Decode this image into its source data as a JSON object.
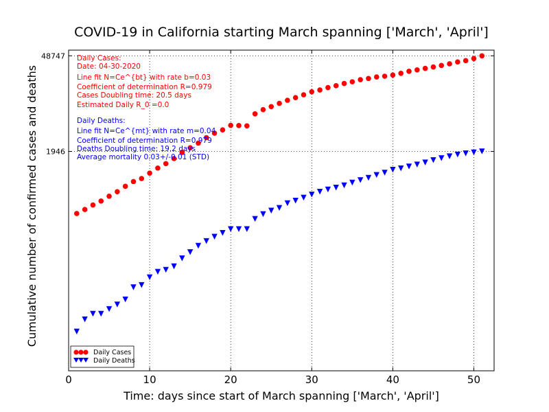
{
  "chart_data": {
    "type": "scatter",
    "title": "COVID-19 in California starting March spanning ['March', 'April']",
    "xlabel": "Time: days since start of March spanning ['March', 'April']",
    "ylabel": "Cumulative number of confirmed cases and deaths",
    "xlim": [
      0,
      52.5
    ],
    "xticks": [
      0,
      10,
      20,
      30,
      40,
      50
    ],
    "ylim": [
      1.2,
      59000
    ],
    "yscale": "log",
    "yticks": [
      1946,
      48747
    ],
    "grid": true,
    "legend": {
      "placement": "lower-left"
    },
    "series": [
      {
        "name": "Daily Cases",
        "color": "#ff0000",
        "marker": "circle",
        "x": [
          1,
          2,
          3,
          4,
          5,
          6,
          7,
          8,
          9,
          10,
          11,
          12,
          13,
          14,
          15,
          16,
          17,
          18,
          19,
          20,
          21,
          22,
          23,
          24,
          25,
          26,
          27,
          28,
          29,
          30,
          31,
          32,
          33,
          34,
          35,
          36,
          37,
          38,
          39,
          40,
          41,
          42,
          43,
          44,
          45,
          46,
          47,
          48,
          49,
          50,
          51
        ],
        "y": [
          240,
          275,
          320,
          365,
          430,
          500,
          600,
          705,
          780,
          935,
          1110,
          1290,
          1530,
          1880,
          2200,
          2570,
          3090,
          3600,
          4010,
          4680,
          4650,
          4600,
          6900,
          7950,
          8800,
          9800,
          10900,
          11900,
          13100,
          14500,
          15400,
          16700,
          17800,
          19200,
          20300,
          21800,
          22700,
          23900,
          24500,
          25500,
          27000,
          28900,
          30300,
          31900,
          33400,
          35200,
          37200,
          39600,
          41400,
          44400,
          48747
        ]
      },
      {
        "name": "Daily Deaths",
        "color": "#0000ff",
        "marker": "triangle-down",
        "x": [
          1,
          2,
          3,
          4,
          5,
          6,
          7,
          8,
          9,
          10,
          11,
          12,
          13,
          14,
          15,
          16,
          17,
          18,
          19,
          20,
          21,
          22,
          23,
          24,
          25,
          26,
          27,
          28,
          29,
          30,
          31,
          32,
          33,
          34,
          35,
          36,
          37,
          38,
          39,
          40,
          41,
          42,
          43,
          44,
          45,
          46,
          47,
          48,
          49,
          50,
          51
        ],
        "y": [
          4.5,
          6.8,
          8.2,
          8.2,
          9.6,
          11.2,
          13.3,
          20,
          21.6,
          28,
          33.7,
          36,
          40.5,
          53,
          65.3,
          81,
          95,
          110,
          125,
          142,
          142,
          142,
          200,
          235,
          265,
          290,
          340,
          370,
          410,
          455,
          500,
          540,
          575,
          620,
          680,
          740,
          800,
          880,
          950,
          1050,
          1100,
          1170,
          1250,
          1340,
          1450,
          1550,
          1650,
          1750,
          1820,
          1880,
          1946
        ]
      }
    ],
    "annotations": {
      "cases": {
        "header": "Daily Cases:",
        "date": "Date: 04-30-2020",
        "fit": "Line fit N=Ce^{bt} with rate b=0.03",
        "r2": "Coefficient of determination R=0.979",
        "doubling": "Cases Doubling time: 20.5 days",
        "r0": "Estimated Daily R_0 =0.0"
      },
      "deaths": {
        "header": "Daily Deaths:",
        "fit": "Line fit N=Ce^{mt} with rate m=0.04",
        "r2": "Coefficient of determination R=0.979",
        "doubling": "Deaths Doubling time: 19.2 days",
        "mortality": "Average mortality 0.03+/-0.01 (STD)"
      }
    }
  }
}
